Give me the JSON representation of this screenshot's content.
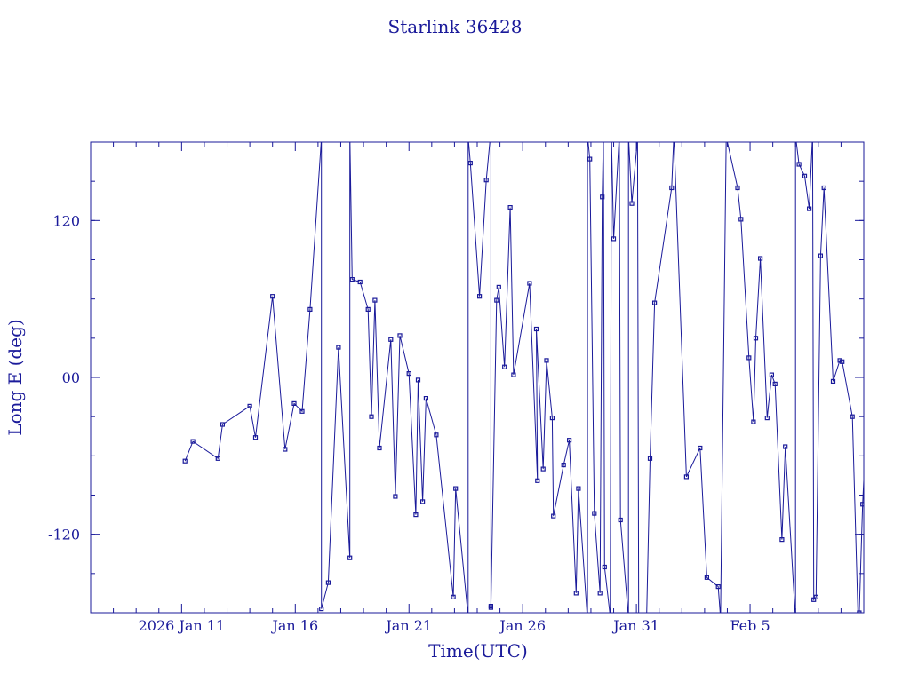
{
  "chart_data": {
    "type": "line",
    "title": "Starlink 36428",
    "xlabel": "Time(UTC)",
    "ylabel": "Long E (deg)",
    "x_units": "days since 2026 Jan 1",
    "xlim": [
      6.0,
      40.0
    ],
    "ylim": [
      -180,
      180
    ],
    "grid": false,
    "legend": "none",
    "x_ticks": [
      {
        "value": 10,
        "label": "2026 Jan 11"
      },
      {
        "value": 15,
        "label": "Jan 16"
      },
      {
        "value": 20,
        "label": "Jan 21"
      },
      {
        "value": 25,
        "label": "Jan 26"
      },
      {
        "value": 30,
        "label": "Jan 31"
      },
      {
        "value": 35,
        "label": "Feb  5"
      }
    ],
    "x_minor_ticks": [
      7,
      8,
      9,
      11,
      12,
      13,
      14,
      16,
      17,
      18,
      19,
      21,
      22,
      23,
      24,
      26,
      27,
      28,
      29,
      31,
      32,
      33,
      34,
      36,
      37,
      38,
      39
    ],
    "y_ticks": [
      {
        "value": 120,
        "label": "120"
      },
      {
        "value": 0,
        "label": "00"
      },
      {
        "value": -120,
        "label": "-120"
      }
    ],
    "y_minor_step": 30,
    "series": [
      {
        "color": "#1a1a9a",
        "points": [
          [
            10.15,
            -64
          ],
          [
            10.5,
            -49
          ],
          [
            11.6,
            -62
          ],
          [
            11.8,
            -36
          ],
          [
            13.0,
            -22
          ],
          [
            13.25,
            -46
          ],
          [
            14.0,
            62
          ],
          [
            14.55,
            -55
          ],
          [
            14.95,
            -20
          ],
          [
            15.3,
            -26
          ],
          [
            15.65,
            52
          ],
          [
            16.15,
            183
          ],
          [
            16.15,
            -177
          ],
          [
            16.45,
            -157
          ],
          [
            16.9,
            23
          ],
          [
            17.4,
            -138
          ],
          [
            17.4,
            183
          ],
          [
            17.4,
            186
          ],
          [
            17.5,
            75
          ],
          [
            17.85,
            73
          ],
          [
            18.2,
            52
          ],
          [
            18.35,
            -30
          ],
          [
            18.5,
            59
          ],
          [
            18.7,
            -54
          ],
          [
            19.2,
            29
          ],
          [
            19.4,
            -91
          ],
          [
            19.6,
            32
          ],
          [
            20.0,
            3
          ],
          [
            20.3,
            -105
          ],
          [
            20.4,
            -2
          ],
          [
            20.6,
            -95
          ],
          [
            20.75,
            -16
          ],
          [
            21.2,
            -44
          ],
          [
            21.95,
            -168
          ],
          [
            22.05,
            -85
          ],
          [
            22.6,
            -183
          ],
          [
            22.6,
            184
          ],
          [
            22.7,
            164
          ],
          [
            23.1,
            62
          ],
          [
            23.4,
            151
          ],
          [
            23.6,
            189
          ],
          [
            23.6,
            -175
          ],
          [
            23.6,
            -176
          ],
          [
            23.85,
            59
          ],
          [
            23.95,
            69
          ],
          [
            24.2,
            8
          ],
          [
            24.45,
            130
          ],
          [
            24.6,
            2
          ],
          [
            25.3,
            72
          ],
          [
            25.65,
            -79
          ],
          [
            25.6,
            37
          ],
          [
            25.9,
            -70
          ],
          [
            26.05,
            13
          ],
          [
            26.3,
            -31
          ],
          [
            26.35,
            -106
          ],
          [
            26.8,
            -67
          ],
          [
            27.05,
            -48
          ],
          [
            27.35,
            -165
          ],
          [
            27.45,
            -85
          ],
          [
            27.85,
            -186
          ],
          [
            27.85,
            185
          ],
          [
            27.95,
            167
          ],
          [
            28.15,
            -104
          ],
          [
            28.4,
            -165
          ],
          [
            28.5,
            138
          ],
          [
            28.55,
            186
          ],
          [
            28.6,
            -145
          ],
          [
            28.85,
            -183
          ],
          [
            28.9,
            186
          ],
          [
            29.0,
            106
          ],
          [
            29.25,
            186
          ],
          [
            29.3,
            -109
          ],
          [
            29.65,
            -184
          ],
          [
            29.65,
            185
          ],
          [
            29.8,
            133
          ],
          [
            30.05,
            183
          ],
          [
            30.1,
            -187
          ],
          [
            30.45,
            -184
          ],
          [
            30.6,
            -62
          ],
          [
            30.8,
            57
          ],
          [
            31.55,
            145
          ],
          [
            31.65,
            186
          ],
          [
            32.2,
            -76
          ],
          [
            32.8,
            -54
          ],
          [
            33.1,
            -153
          ],
          [
            33.6,
            -160
          ],
          [
            33.7,
            -184
          ],
          [
            33.95,
            184
          ],
          [
            34.45,
            145
          ],
          [
            34.6,
            121
          ],
          [
            34.95,
            15
          ],
          [
            35.15,
            -34
          ],
          [
            35.25,
            30
          ],
          [
            35.45,
            91
          ],
          [
            35.75,
            -31
          ],
          [
            35.95,
            2
          ],
          [
            36.1,
            -5
          ],
          [
            36.4,
            -124
          ],
          [
            36.55,
            -53
          ],
          [
            37.0,
            -186
          ],
          [
            37.0,
            185
          ],
          [
            37.15,
            163
          ],
          [
            37.4,
            154
          ],
          [
            37.6,
            129
          ],
          [
            37.75,
            186
          ],
          [
            37.8,
            -170
          ],
          [
            37.9,
            -168
          ],
          [
            38.1,
            93
          ],
          [
            38.25,
            145
          ],
          [
            38.65,
            -3
          ],
          [
            38.95,
            13
          ],
          [
            39.05,
            12
          ],
          [
            39.5,
            -30
          ],
          [
            39.75,
            -185
          ],
          [
            39.8,
            -180
          ],
          [
            39.95,
            -97
          ],
          [
            40.3,
            31
          ]
        ]
      }
    ]
  }
}
